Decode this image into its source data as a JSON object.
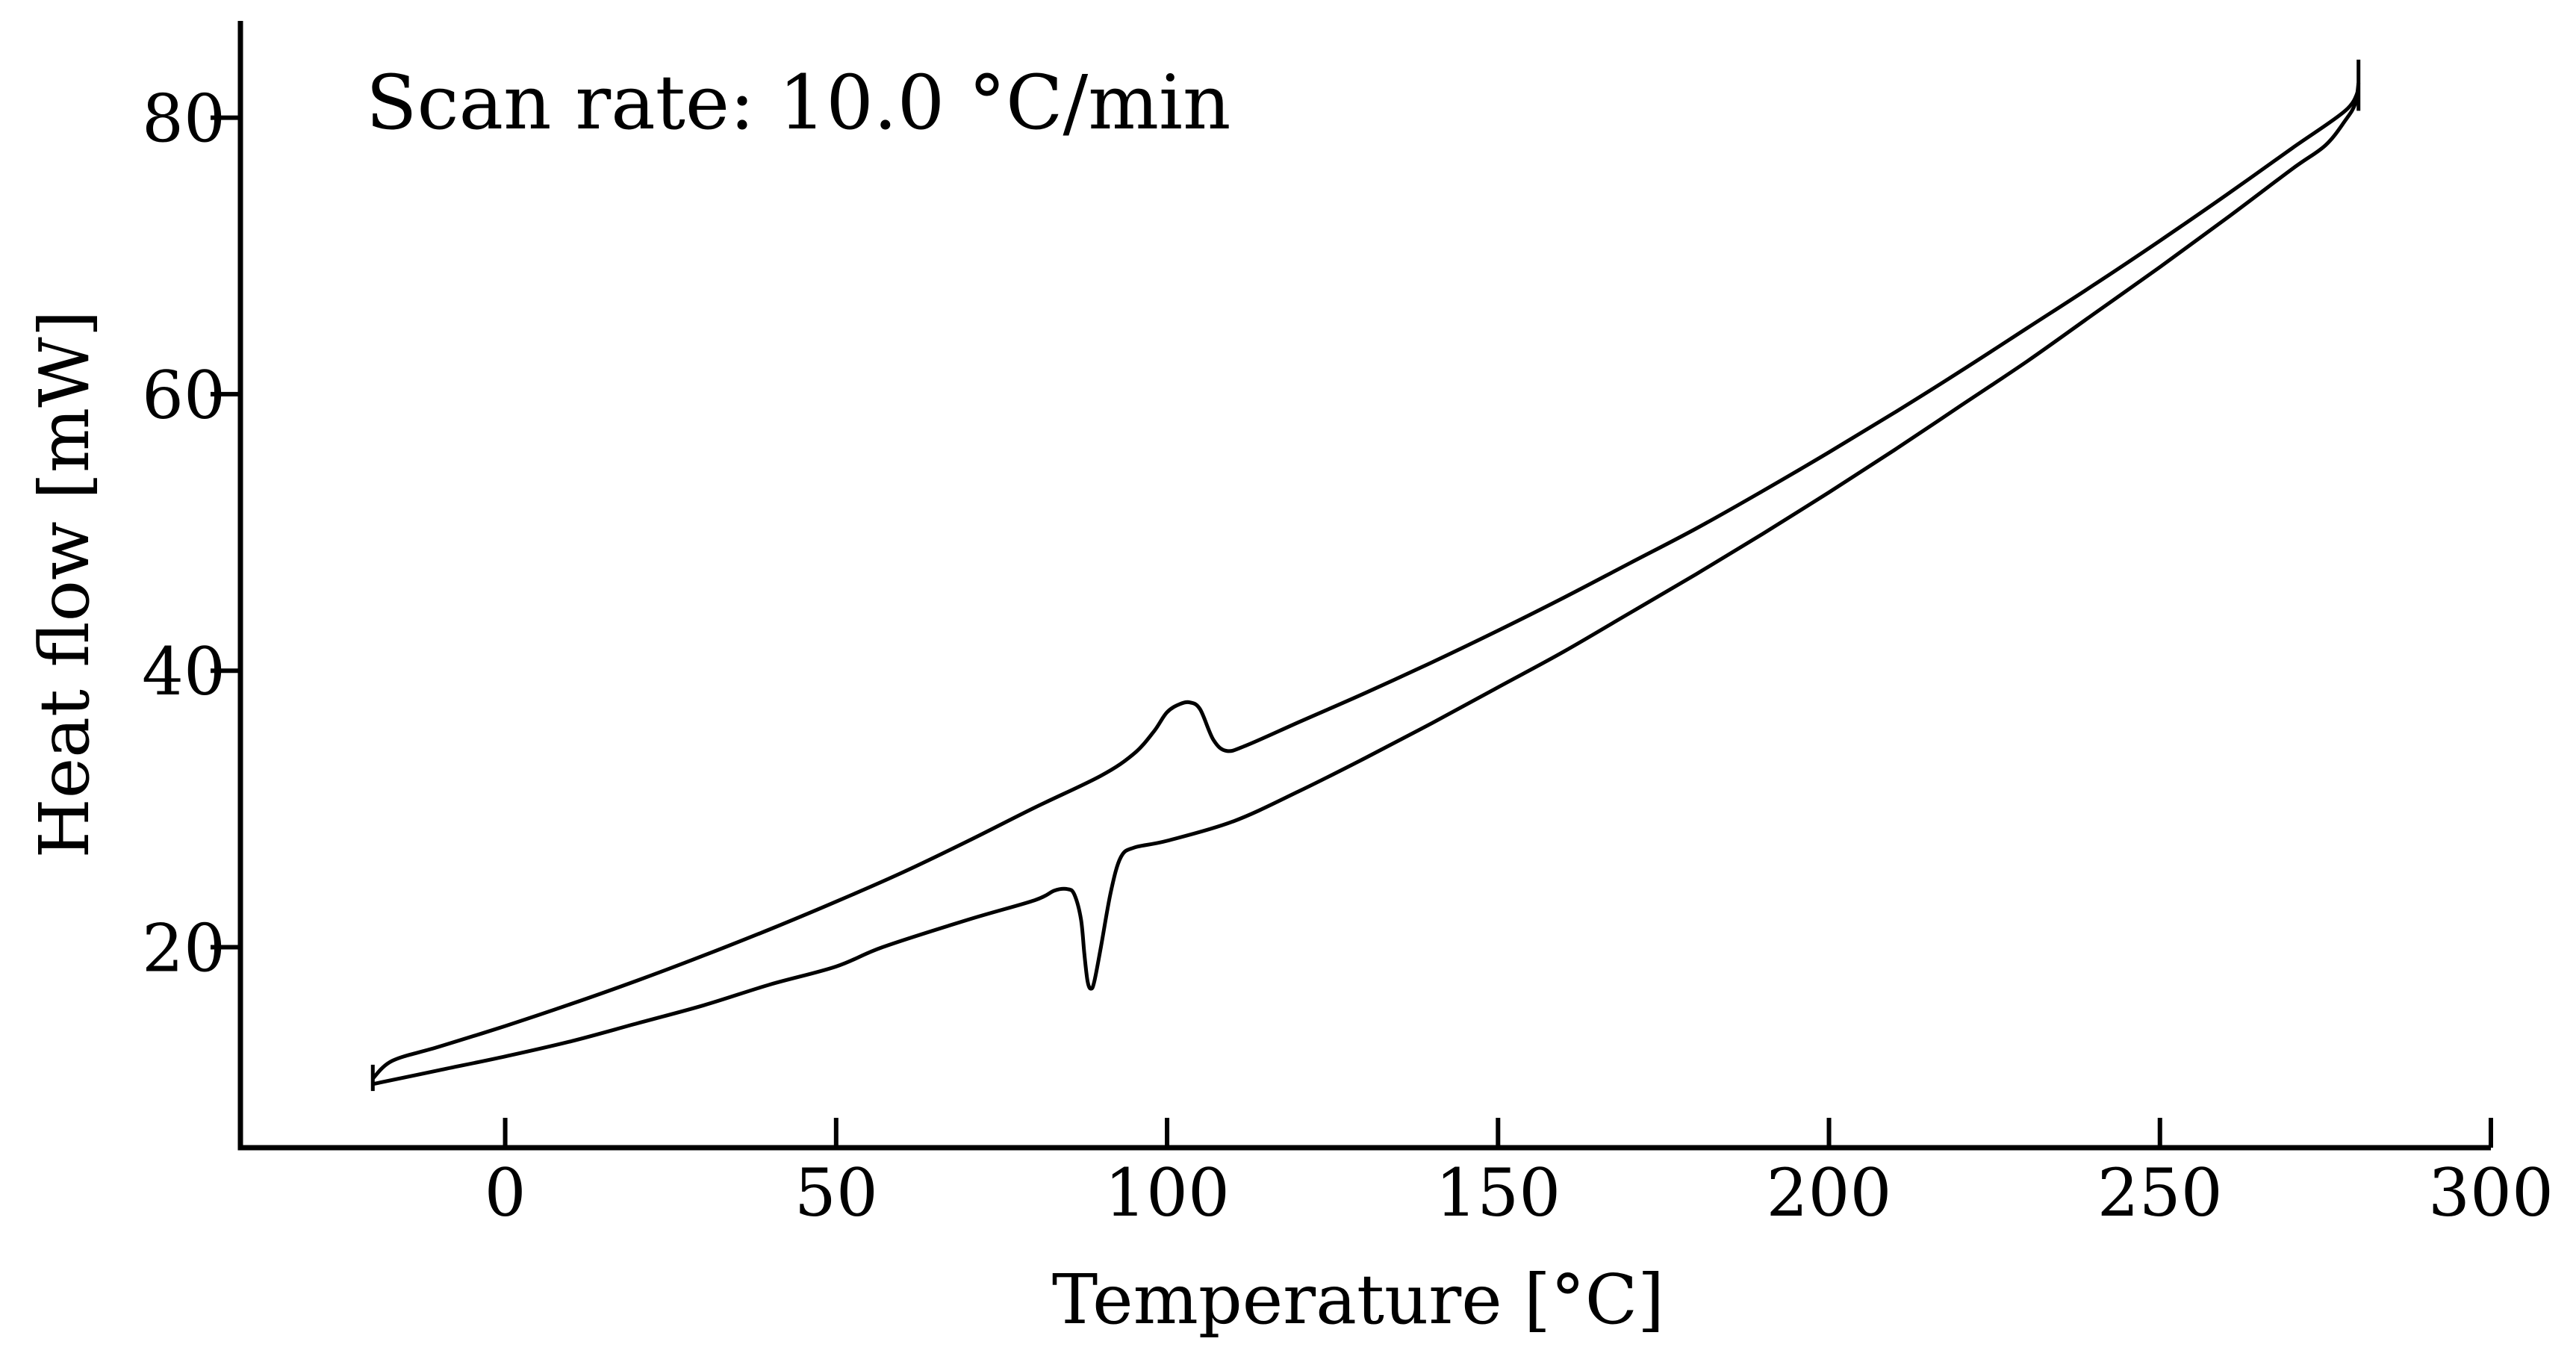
{
  "chart_data": {
    "type": "line",
    "title": "",
    "xlabel": "Temperature [°C]",
    "ylabel": "Heat flow [mW]",
    "xlim": [
      -40,
      300
    ],
    "ylim": [
      5.5,
      87
    ],
    "xticks": [
      0,
      50,
      100,
      150,
      200,
      250,
      300
    ],
    "yticks": [
      20,
      40,
      60,
      80
    ],
    "grid": false,
    "annotation": "Scan rate: 10.0 °C/min",
    "line_color": "#000000",
    "series": [
      {
        "x": [
          -20,
          -17,
          -10,
          0,
          10,
          20,
          30,
          40,
          50,
          60,
          70,
          80,
          90,
          95,
          98,
          100,
          102,
          103.5,
          105,
          107,
          109,
          112,
          120,
          130,
          140,
          150,
          160,
          170,
          180,
          190,
          200,
          210,
          220,
          230,
          240,
          250,
          260,
          270,
          278,
          280
        ],
        "y": [
          10.5,
          11.8,
          12.8,
          14.3,
          15.9,
          17.6,
          19.4,
          21.3,
          23.3,
          25.4,
          27.7,
          30.1,
          32.4,
          34.0,
          35.6,
          37.0,
          37.6,
          37.7,
          37.2,
          35.0,
          34.2,
          34.6,
          36.3,
          38.4,
          40.6,
          42.9,
          45.3,
          47.8,
          50.3,
          53.0,
          55.8,
          58.7,
          61.7,
          64.8,
          67.9,
          71.1,
          74.4,
          77.8,
          80.5,
          82.0
        ]
      },
      {
        "x": [
          280,
          279.5,
          278,
          275,
          270,
          260,
          250,
          240,
          230,
          220,
          210,
          200,
          190,
          180,
          170,
          160,
          150,
          140,
          130,
          120,
          110,
          100,
          95,
          93,
          91.5,
          90,
          89,
          88.5,
          88,
          87.5,
          87,
          86,
          85,
          83,
          80,
          70,
          57,
          50,
          40,
          30,
          20,
          10,
          0,
          -10,
          -20
        ],
        "y": [
          82.5,
          81.0,
          79.8,
          78.0,
          76.3,
          72.7,
          69.2,
          65.8,
          62.4,
          59.2,
          56.0,
          52.9,
          49.9,
          47.0,
          44.2,
          41.4,
          38.8,
          36.2,
          33.7,
          31.3,
          29.1,
          27.7,
          27.2,
          26.5,
          24.0,
          20.0,
          17.5,
          17.0,
          17.5,
          19.5,
          22.0,
          23.8,
          24.2,
          24.1,
          23.4,
          22.0,
          20.0,
          18.6,
          17.3,
          15.8,
          14.5,
          13.2,
          12.1,
          11.1,
          10.1
        ]
      }
    ],
    "tick_labels_x": [
      "0",
      "50",
      "100",
      "150",
      "200",
      "250",
      "300"
    ],
    "tick_labels_y": [
      "20",
      "40",
      "60",
      "80"
    ]
  }
}
